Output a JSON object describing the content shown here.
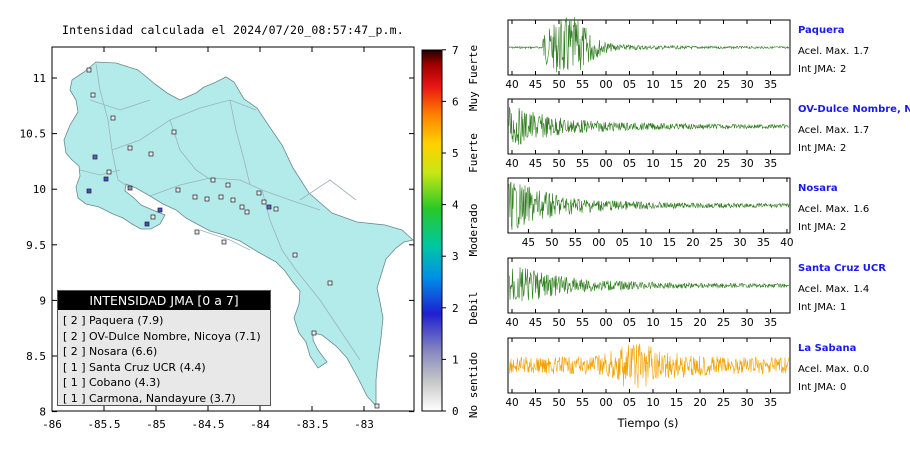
{
  "map": {
    "title": "Intensidad calculada el 2024/07/20_08:57:47_p.m.",
    "x_ticks": [
      "-86",
      "-85.5",
      "-85",
      "-84.5",
      "-84",
      "-83.5",
      "-83"
    ],
    "y_ticks": [
      "11",
      "10.5",
      "10",
      "9.5",
      "9",
      "8.5",
      "8"
    ],
    "land_color": "#b3ebeb",
    "legend": {
      "title": "INTENSIDAD JMA [0 a 7]",
      "items": [
        {
          "level": "[ 2 ]",
          "name": "Paquera (7.9)"
        },
        {
          "level": "[ 2 ]",
          "name": "OV-Dulce Nombre, Nicoya (7.1)"
        },
        {
          "level": "[ 2 ]",
          "name": "Nosara (6.6)"
        },
        {
          "level": "[ 1 ]",
          "name": "Santa Cruz UCR (4.4)"
        },
        {
          "level": "[ 1 ]",
          "name": "Cobano (4.3)"
        },
        {
          "level": "[ 1 ]",
          "name": "Carmona, Nandayure (3.7)"
        }
      ]
    }
  },
  "colorbar": {
    "ticks": [
      "0",
      "1",
      "2",
      "3",
      "4",
      "5",
      "6",
      "7"
    ],
    "labels": [
      "No sentido",
      "Debil",
      "Moderado",
      "Fuerte",
      "Muy Fuerte"
    ]
  },
  "traces": [
    {
      "station": "Paquera",
      "accel_label": "Acel. Max.",
      "accel_value": "1.7",
      "jma_label": "Int JMA:",
      "jma_value": "2",
      "color": "#2e7d1e",
      "ticks": [
        "40",
        "45",
        "50",
        "55",
        "00",
        "05",
        "10",
        "15",
        "20",
        "25",
        "30",
        "35"
      ]
    },
    {
      "station": "OV-Dulce Nombre, Nicoya",
      "accel_label": "Acel. Max.",
      "accel_value": "1.7",
      "jma_label": "Int JMA:",
      "jma_value": "2",
      "color": "#2e7d1e",
      "ticks": [
        "40",
        "45",
        "50",
        "55",
        "00",
        "05",
        "10",
        "15",
        "20",
        "25",
        "30",
        "35"
      ]
    },
    {
      "station": "Nosara",
      "accel_label": "Acel. Max.",
      "accel_value": "1.6",
      "jma_label": "Int JMA:",
      "jma_value": "2",
      "color": "#2e7d1e",
      "ticks": [
        "45",
        "50",
        "55",
        "00",
        "05",
        "10",
        "15",
        "20",
        "25",
        "30",
        "35",
        "40"
      ]
    },
    {
      "station": "Santa Cruz UCR",
      "accel_label": "Acel. Max.",
      "accel_value": "1.4",
      "jma_label": "Int JMA:",
      "jma_value": "1",
      "color": "#2e7d1e",
      "ticks": [
        "40",
        "45",
        "50",
        "55",
        "00",
        "05",
        "10",
        "15",
        "20",
        "25",
        "30",
        "35"
      ]
    },
    {
      "station": "La Sabana",
      "accel_label": "Acel. Max.",
      "accel_value": "0.0",
      "jma_label": "Int JMA:",
      "jma_value": "0",
      "color": "#f2a100",
      "ticks": [
        "40",
        "45",
        "50",
        "55",
        "00",
        "05",
        "10",
        "15",
        "20",
        "25",
        "30",
        "35"
      ]
    }
  ],
  "x_axis_label": "Tiempo (s)",
  "station_name_color": "#1a1aee"
}
